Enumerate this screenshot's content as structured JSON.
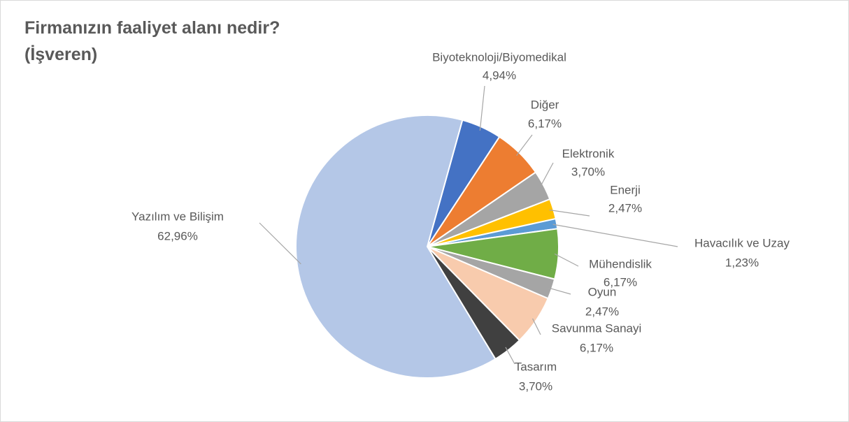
{
  "chart_data": {
    "type": "pie",
    "title": "Firmanızın faaliyet alanı nedir? (İşveren)",
    "categories": [
      "Biyoteknoloji/Biyomedikal",
      "Diğer",
      "Elektronik",
      "Enerji",
      "Havacılık ve Uzay",
      "Mühendislik",
      "Oyun",
      "Savunma Sanayi",
      "Tasarım",
      "Yazılım ve Bilişim"
    ],
    "values": [
      4.94,
      6.17,
      3.7,
      2.47,
      1.23,
      6.17,
      2.47,
      6.17,
      3.7,
      62.96
    ],
    "value_labels": [
      "4,94%",
      "6,17%",
      "3,70%",
      "2,47%",
      "1,23%",
      "6,17%",
      "2,47%",
      "6,17%",
      "3,70%",
      "62,96%"
    ],
    "colors": [
      "#4472c4",
      "#ed7d31",
      "#a5a5a5",
      "#ffc000",
      "#5b9bd5",
      "#70ad47",
      "#a5a5a5",
      "#f8cbad",
      "#404040",
      "#b4c7e7"
    ]
  }
}
